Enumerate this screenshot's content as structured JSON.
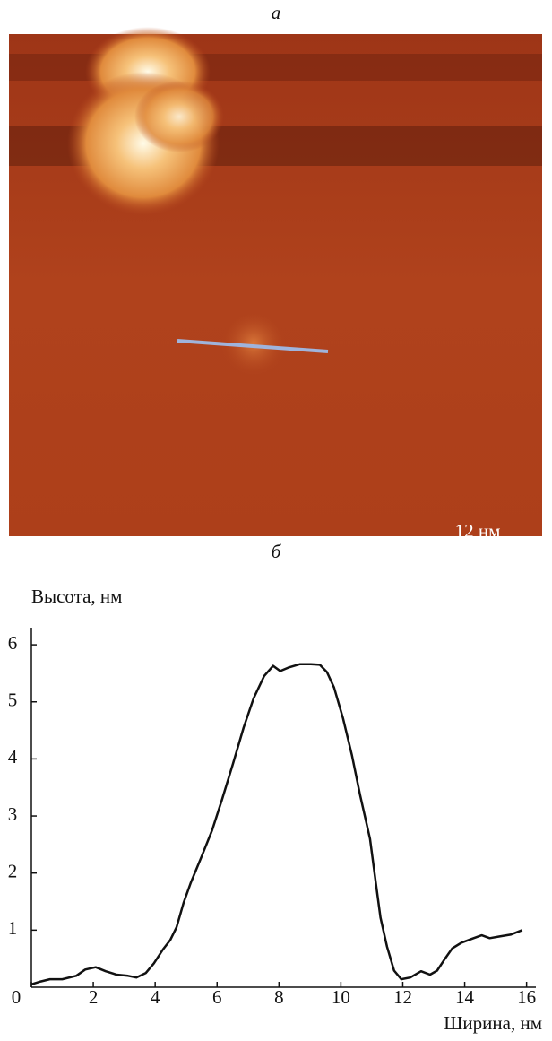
{
  "figure": {
    "panel_a_label": "а",
    "scale_bar_label": "12 нм",
    "panel_b_label": "б"
  },
  "chart_data": {
    "type": "line",
    "y_label": "Высота, нм",
    "x_label": "Ширина, нм",
    "x": [
      0,
      0.3,
      0.6,
      1.0,
      1.45,
      1.74,
      2.08,
      2.4,
      2.75,
      3.12,
      3.39,
      3.7,
      3.96,
      4.25,
      4.49,
      4.69,
      4.92,
      5.15,
      5.5,
      5.84,
      6.16,
      6.51,
      6.86,
      7.18,
      7.52,
      7.81,
      8.04,
      8.3,
      8.68,
      9.03,
      9.32,
      9.55,
      9.78,
      10.07,
      10.36,
      10.62,
      10.94,
      11.14,
      11.28,
      11.49,
      11.72,
      11.95,
      12.24,
      12.59,
      12.88,
      13.11,
      13.34,
      13.6,
      13.89,
      14.24,
      14.55,
      14.81,
      15.13,
      15.48,
      15.86
    ],
    "values": [
      0.05,
      0.1,
      0.14,
      0.14,
      0.2,
      0.31,
      0.35,
      0.28,
      0.22,
      0.2,
      0.17,
      0.25,
      0.42,
      0.66,
      0.83,
      1.05,
      1.48,
      1.83,
      2.29,
      2.75,
      3.29,
      3.91,
      4.55,
      5.06,
      5.45,
      5.63,
      5.54,
      5.6,
      5.66,
      5.66,
      5.65,
      5.52,
      5.25,
      4.71,
      4.06,
      3.37,
      2.6,
      1.78,
      1.22,
      0.71,
      0.29,
      0.14,
      0.17,
      0.28,
      0.22,
      0.29,
      0.48,
      0.68,
      0.78,
      0.85,
      0.91,
      0.86,
      0.89,
      0.92,
      1.0
    ],
    "color": "#111111",
    "xlim": [
      0,
      16.3
    ],
    "ylim": [
      0,
      6.3
    ],
    "xticks": [
      0,
      2,
      4,
      6,
      8,
      10,
      12,
      14,
      16
    ],
    "yticks": [
      1,
      2,
      3,
      4,
      5,
      6
    ]
  }
}
